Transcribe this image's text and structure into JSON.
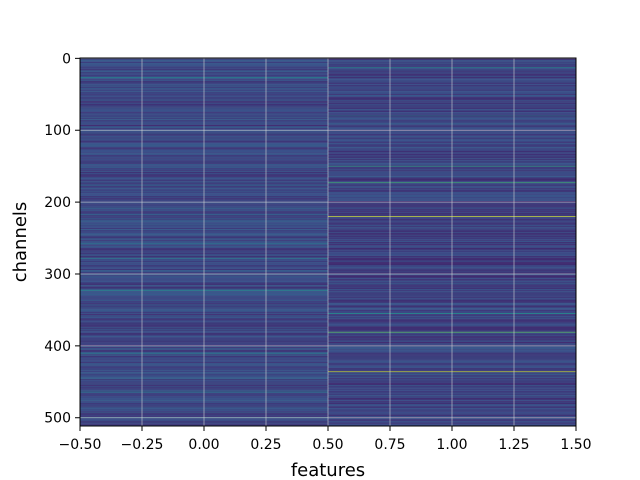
{
  "chart_data": {
    "type": "heatmap",
    "title": "",
    "xlabel": "features",
    "ylabel": "channels",
    "xlim": [
      -0.5,
      1.5
    ],
    "ylim": [
      511.5,
      -0.5
    ],
    "y_inverted": true,
    "grid": true,
    "colormap": "viridis",
    "columns": [
      0,
      1
    ],
    "rows": 512,
    "x_ticks": [
      "−0.50",
      "−0.25",
      "0.00",
      "0.25",
      "0.50",
      "0.75",
      "1.00",
      "1.25",
      "1.50"
    ],
    "x_tick_values": [
      -0.5,
      -0.25,
      0.0,
      0.25,
      0.5,
      0.75,
      1.0,
      1.25,
      1.5
    ],
    "y_ticks": [
      "0",
      "100",
      "200",
      "300",
      "400",
      "500"
    ],
    "y_tick_values": [
      0,
      100,
      200,
      300,
      400,
      500
    ],
    "column_baseline": [
      0.22,
      0.2
    ],
    "highlights": [
      {
        "col": 0,
        "row": 27,
        "value": 0.45
      },
      {
        "col": 0,
        "row": 93,
        "value": 0.08
      },
      {
        "col": 0,
        "row": 258,
        "value": 0.4
      },
      {
        "col": 0,
        "row": 278,
        "value": 0.42
      },
      {
        "col": 0,
        "row": 323,
        "value": 0.45
      },
      {
        "col": 0,
        "row": 411,
        "value": 0.4
      },
      {
        "col": 0,
        "row": 464,
        "value": 0.38
      },
      {
        "col": 0,
        "row": 500,
        "value": 0.45
      },
      {
        "col": 1,
        "row": 13,
        "value": 0.45
      },
      {
        "col": 1,
        "row": 80,
        "value": 0.38
      },
      {
        "col": 1,
        "row": 150,
        "value": 0.55
      },
      {
        "col": 1,
        "row": 173,
        "value": 0.62
      },
      {
        "col": 1,
        "row": 220,
        "value": 0.92
      },
      {
        "col": 1,
        "row": 355,
        "value": 0.5
      },
      {
        "col": 1,
        "row": 381,
        "value": 0.72
      },
      {
        "col": 1,
        "row": 436,
        "value": 0.9
      }
    ]
  }
}
